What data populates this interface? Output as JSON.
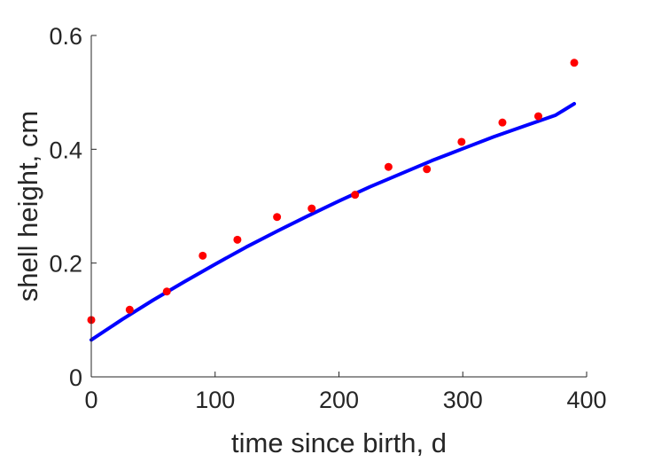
{
  "chart_data": {
    "type": "scatter",
    "title": "",
    "xlabel": "time since birth, d",
    "ylabel": "shell height, cm",
    "xlim": [
      0,
      400
    ],
    "ylim": [
      0,
      0.6
    ],
    "xticks": [
      0,
      100,
      200,
      300,
      400
    ],
    "xtick_labels": [
      "0",
      "100",
      "200",
      "300",
      "400"
    ],
    "yticks": [
      0,
      0.2,
      0.4,
      0.6
    ],
    "ytick_labels": [
      "0",
      "0.2",
      "0.4",
      "0.6"
    ],
    "grid": false,
    "box": false,
    "series": [
      {
        "kind": "points",
        "color": "#ff0000",
        "points": [
          {
            "x": 0,
            "y": 0.1
          },
          {
            "x": 31,
            "y": 0.118
          },
          {
            "x": 61,
            "y": 0.15
          },
          {
            "x": 90,
            "y": 0.213
          },
          {
            "x": 118,
            "y": 0.241
          },
          {
            "x": 150,
            "y": 0.281
          },
          {
            "x": 178,
            "y": 0.296
          },
          {
            "x": 213,
            "y": 0.32
          },
          {
            "x": 240,
            "y": 0.369
          },
          {
            "x": 271,
            "y": 0.365
          },
          {
            "x": 299,
            "y": 0.413
          },
          {
            "x": 332,
            "y": 0.447
          },
          {
            "x": 361,
            "y": 0.458
          },
          {
            "x": 390,
            "y": 0.552
          }
        ]
      },
      {
        "kind": "line",
        "color": "#0000ff",
        "points": [
          {
            "x": 0,
            "y": 0.065
          },
          {
            "x": 25,
            "y": 0.101
          },
          {
            "x": 50,
            "y": 0.135
          },
          {
            "x": 75,
            "y": 0.167
          },
          {
            "x": 100,
            "y": 0.198
          },
          {
            "x": 125,
            "y": 0.228
          },
          {
            "x": 150,
            "y": 0.256
          },
          {
            "x": 175,
            "y": 0.283
          },
          {
            "x": 200,
            "y": 0.309
          },
          {
            "x": 225,
            "y": 0.334
          },
          {
            "x": 250,
            "y": 0.357
          },
          {
            "x": 275,
            "y": 0.38
          },
          {
            "x": 300,
            "y": 0.401
          },
          {
            "x": 325,
            "y": 0.422
          },
          {
            "x": 350,
            "y": 0.441
          },
          {
            "x": 375,
            "y": 0.46
          },
          {
            "x": 390,
            "y": 0.48
          }
        ]
      }
    ]
  }
}
